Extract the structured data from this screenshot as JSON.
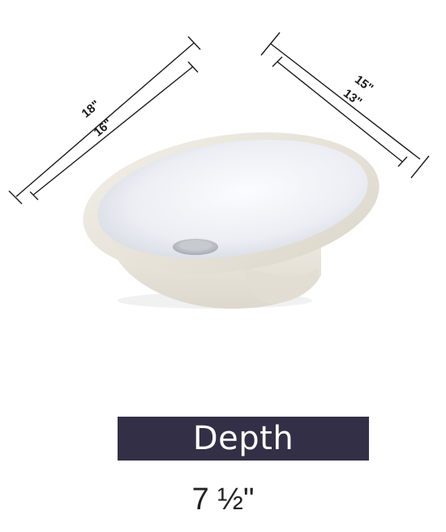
{
  "dimensions": {
    "length_outer": "18\"",
    "length_inner": "16\"",
    "width_outer": "15\"",
    "width_inner": "13\""
  },
  "depth": {
    "title": "Depth",
    "value": "7 ½\""
  },
  "colors": {
    "banner": "#332f46",
    "sink_rim": "#ebe7de",
    "sink_basin": "#f4f5f8",
    "dimension_lines": "#1a1a1a"
  },
  "icons": {
    "product": "undermount-oval-sink-photo"
  }
}
